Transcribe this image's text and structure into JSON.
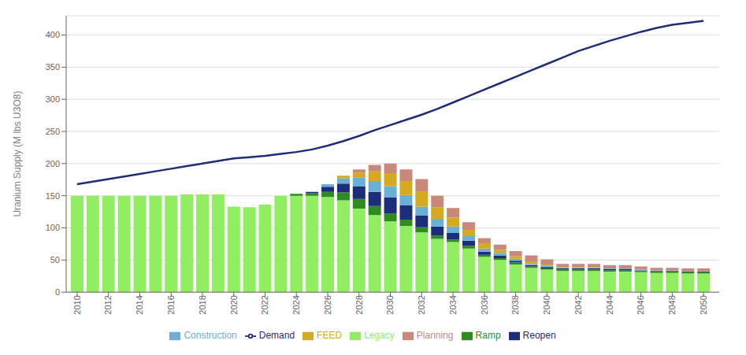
{
  "chart_data": {
    "type": "bar",
    "stacked": true,
    "y_label": "Uranium Supply (M lbs U3O8)",
    "x": [
      2010,
      2011,
      2012,
      2013,
      2014,
      2015,
      2016,
      2017,
      2018,
      2019,
      2020,
      2021,
      2022,
      2023,
      2024,
      2025,
      2026,
      2027,
      2028,
      2029,
      2030,
      2031,
      2032,
      2033,
      2034,
      2035,
      2036,
      2037,
      2038,
      2039,
      2040,
      2041,
      2042,
      2043,
      2044,
      2045,
      2046,
      2047,
      2048,
      2049,
      2050
    ],
    "series": [
      {
        "name": "Legacy",
        "type": "bar",
        "color": "#90EE60",
        "values": [
          150,
          150,
          150,
          150,
          150,
          150,
          150,
          152,
          152,
          152,
          133,
          132,
          136,
          150,
          150,
          150,
          148,
          143,
          130,
          120,
          110,
          103,
          93,
          83,
          78,
          68,
          55,
          50,
          43,
          38,
          35,
          33,
          33,
          33,
          32,
          32,
          31,
          30,
          30,
          29,
          29
        ]
      },
      {
        "name": "Ramp",
        "type": "bar",
        "color": "#2E8B20",
        "values": [
          0,
          0,
          0,
          0,
          0,
          0,
          0,
          0,
          0,
          0,
          0,
          0,
          0,
          0,
          3,
          4,
          8,
          12,
          15,
          14,
          12,
          10,
          8,
          5,
          4,
          4,
          3,
          3,
          3,
          2,
          2,
          2,
          2,
          2,
          2,
          2,
          2,
          2,
          2,
          2,
          2
        ]
      },
      {
        "name": "Reopen",
        "type": "bar",
        "color": "#1C2D7A",
        "values": [
          0,
          0,
          0,
          0,
          0,
          0,
          0,
          0,
          0,
          0,
          0,
          0,
          0,
          0,
          0,
          2,
          8,
          14,
          20,
          22,
          25,
          22,
          18,
          14,
          10,
          8,
          5,
          4,
          3,
          2,
          2,
          2,
          2,
          2,
          2,
          2,
          1,
          1,
          1,
          1,
          1
        ]
      },
      {
        "name": "Construction",
        "type": "bar",
        "color": "#6BAED6",
        "values": [
          0,
          0,
          0,
          0,
          0,
          0,
          0,
          0,
          0,
          0,
          0,
          0,
          0,
          0,
          0,
          0,
          4,
          8,
          13,
          17,
          18,
          16,
          14,
          12,
          10,
          7,
          5,
          4,
          3,
          2,
          2,
          1,
          1,
          1,
          1,
          1,
          1,
          1,
          1,
          1,
          1
        ]
      },
      {
        "name": "FEED",
        "type": "bar",
        "color": "#D4AA20",
        "values": [
          0,
          0,
          0,
          0,
          0,
          0,
          0,
          0,
          0,
          0,
          0,
          0,
          0,
          0,
          0,
          0,
          0,
          4,
          8,
          15,
          20,
          22,
          23,
          18,
          14,
          10,
          8,
          5,
          4,
          3,
          2,
          1,
          1,
          1,
          0,
          0,
          0,
          0,
          0,
          0,
          0
        ]
      },
      {
        "name": "Planning",
        "type": "bar",
        "color": "#C9897A",
        "values": [
          0,
          0,
          0,
          0,
          0,
          0,
          0,
          0,
          0,
          0,
          0,
          0,
          0,
          0,
          0,
          0,
          0,
          0,
          5,
          10,
          15,
          18,
          20,
          18,
          15,
          12,
          8,
          8,
          8,
          10,
          8,
          5,
          5,
          5,
          5,
          5,
          5,
          4,
          4,
          4,
          4
        ]
      },
      {
        "name": "Demand",
        "type": "line",
        "color": "#1C2D7A",
        "values": [
          168,
          172,
          176,
          180,
          184,
          188,
          192,
          196,
          200,
          204,
          208,
          210,
          212,
          215,
          218,
          222,
          228,
          235,
          243,
          252,
          260,
          268,
          276,
          285,
          295,
          305,
          315,
          325,
          335,
          345,
          355,
          365,
          375,
          383,
          391,
          398,
          405,
          411,
          416,
          419,
          422
        ]
      }
    ],
    "xlim": [
      2009.3,
      2051
    ],
    "xticks": [
      2010,
      2012,
      2014,
      2016,
      2018,
      2020,
      2022,
      2024,
      2026,
      2028,
      2030,
      2032,
      2034,
      2036,
      2038,
      2040,
      2042,
      2044,
      2046,
      2048,
      2050
    ],
    "ylim": [
      0,
      430
    ],
    "yticks": [
      0,
      50,
      100,
      150,
      200,
      250,
      300,
      350,
      400
    ],
    "grid": true,
    "legend": "bottom"
  }
}
